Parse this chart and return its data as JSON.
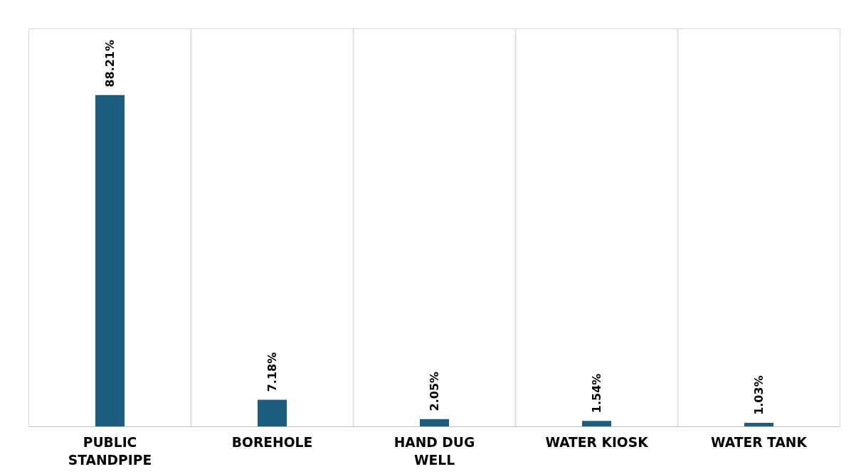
{
  "chart_data": {
    "type": "bar",
    "categories": [
      "PUBLIC\nSTANDPIPE",
      "BOREHOLE",
      "HAND DUG\nWELL",
      "WATER KIOSK",
      "WATER TANK"
    ],
    "values": [
      88.21,
      7.18,
      2.05,
      1.54,
      1.03
    ],
    "value_labels": [
      "88.21%",
      "7.18%",
      "2.05%",
      "1.54%",
      "1.03%"
    ],
    "color": "#1a5f80",
    "grid": "x"
  }
}
